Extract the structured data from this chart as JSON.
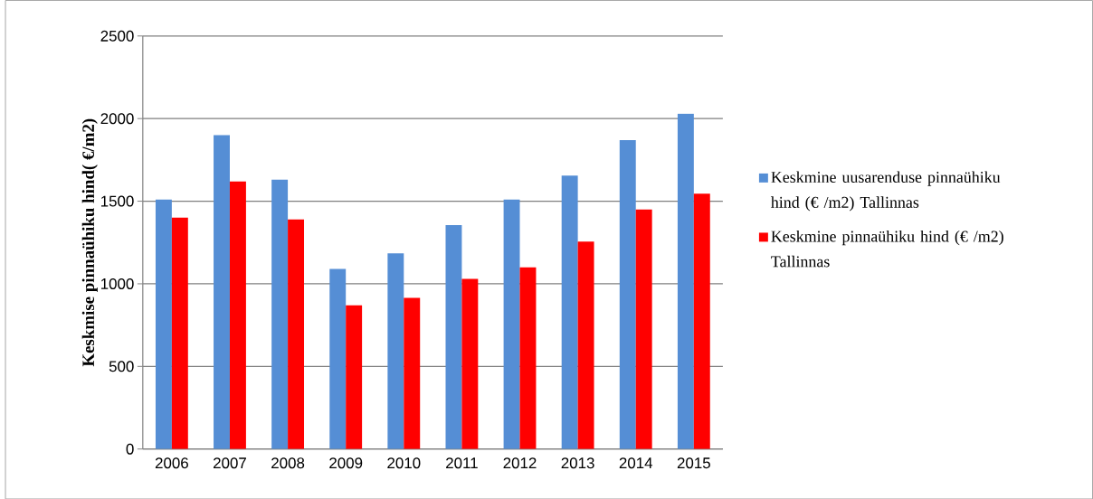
{
  "chart_data": {
    "type": "bar",
    "ylabel": "Keskmise pinnaühiku hind( €/m2)",
    "categories": [
      "2006",
      "2007",
      "2008",
      "2009",
      "2010",
      "2011",
      "2012",
      "2013",
      "2014",
      "2015"
    ],
    "series": [
      {
        "name": "Keskmine uusarenduse pinnaühiku hind (€ /m2) Tallinnas",
        "color": "#558ed5",
        "values": [
          1510,
          1900,
          1630,
          1090,
          1185,
          1355,
          1510,
          1655,
          1870,
          2030
        ]
      },
      {
        "name": "Keskmine pinnaühiku hind (€ /m2) Tallinnas",
        "color": "#ff0000",
        "values": [
          1400,
          1620,
          1390,
          870,
          915,
          1030,
          1100,
          1255,
          1450,
          1545
        ]
      }
    ],
    "ylim": [
      0,
      2500
    ],
    "yticks": [
      0,
      500,
      1000,
      1500,
      2000,
      2500
    ],
    "grid": "y",
    "legend": "right"
  }
}
